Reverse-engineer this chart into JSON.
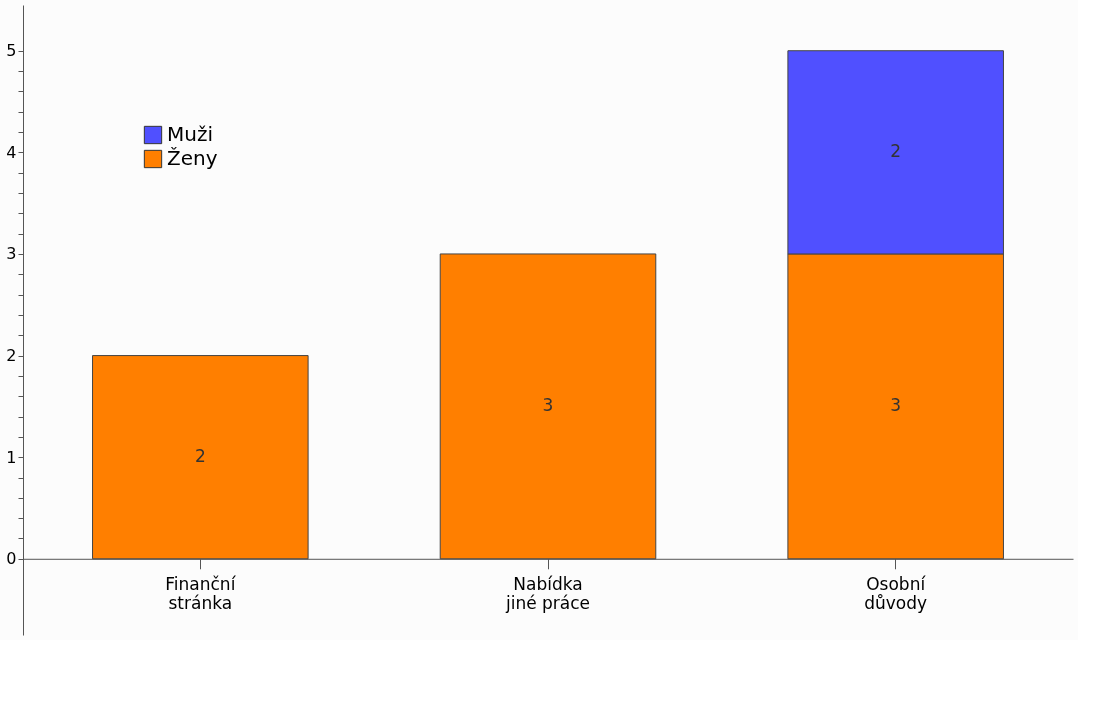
{
  "chart_data": {
    "type": "bar",
    "stacked": true,
    "data_labels": true,
    "legend": "top left",
    "grid": false,
    "categories": [
      "Finanční\nstránka",
      "Nabídka\njiné práce",
      "Osobní\ndůvody"
    ],
    "series": [
      {
        "name": "Ženy",
        "color": "#ff7f00",
        "values": [
          2,
          3,
          3
        ]
      },
      {
        "name": "Muži",
        "color": "#5050ff",
        "values": [
          null,
          null,
          2
        ]
      }
    ],
    "ylim": [
      -0.75,
      5.45
    ],
    "yticks": [
      0,
      {
        "value": 0.2,
        "label": null
      },
      {
        "value": 0.4,
        "label": null
      },
      {
        "value": 0.6,
        "label": null
      },
      {
        "value": 0.8,
        "label": null
      },
      1,
      {
        "value": 1.2,
        "label": null
      },
      {
        "value": 1.4,
        "label": null
      },
      {
        "value": 1.6,
        "label": null
      },
      {
        "value": 1.8,
        "label": null
      },
      2,
      {
        "value": 2.2,
        "label": null
      },
      {
        "value": 2.4,
        "label": null
      },
      {
        "value": 2.6,
        "label": null
      },
      {
        "value": 2.8,
        "label": null
      },
      3,
      {
        "value": 3.2,
        "label": null
      },
      {
        "value": 3.4,
        "label": null
      },
      {
        "value": 3.6,
        "label": null
      },
      {
        "value": 3.8,
        "label": null
      },
      4,
      {
        "value": 4.2,
        "label": null
      },
      {
        "value": 4.4,
        "label": null
      },
      {
        "value": 4.6,
        "label": null
      },
      {
        "value": 4.8,
        "label": null
      },
      5
    ]
  }
}
